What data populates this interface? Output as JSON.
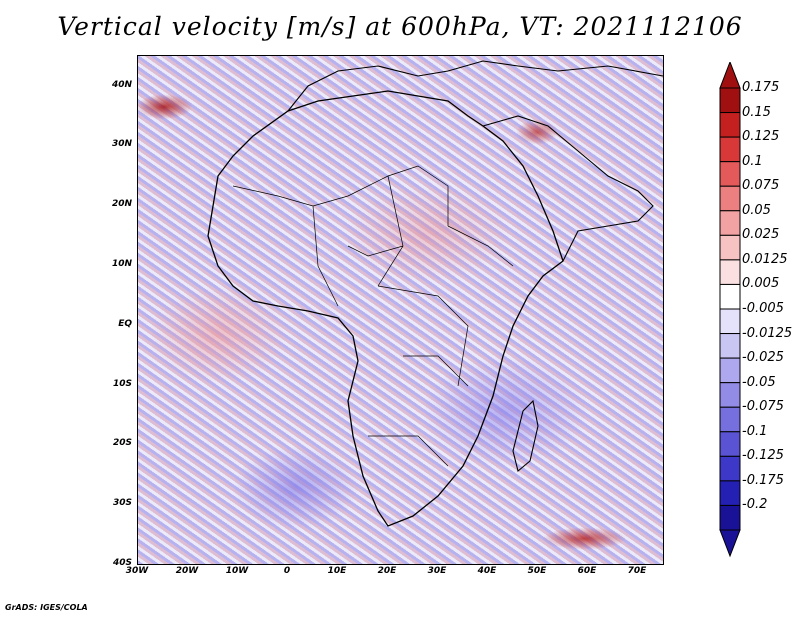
{
  "title": "Vertical velocity [m/s] at 600hPa, VT: 2021112106",
  "footer": "GrADS: IGES/COLA",
  "map": {
    "lat_labels": [
      "40N",
      "30N",
      "20N",
      "10N",
      "EQ",
      "10S",
      "20S",
      "30S",
      "40S"
    ],
    "lon_labels": [
      "30W",
      "20W",
      "10W",
      "0",
      "10E",
      "20E",
      "30E",
      "40E",
      "50E",
      "60E",
      "70E"
    ],
    "lat_range": [
      -40,
      45
    ],
    "lon_range": [
      -30,
      75
    ]
  },
  "colorbar": {
    "levels": [
      "0.175",
      "0.15",
      "0.125",
      "0.1",
      "0.075",
      "0.05",
      "0.025",
      "0.0125",
      "0.005",
      "-0.005",
      "-0.0125",
      "-0.025",
      "-0.05",
      "-0.075",
      "-0.1",
      "-0.125",
      "-0.175",
      "-0.2"
    ],
    "colors": [
      "#a01010",
      "#c42020",
      "#d83838",
      "#e45a5a",
      "#ec8080",
      "#f2a2a2",
      "#f6c2c2",
      "#fae0e0",
      "#ffffff",
      "#e4e2fa",
      "#cac6f4",
      "#aea8ee",
      "#928ce6",
      "#7670de",
      "#5a54d4",
      "#3e38c8",
      "#2420b4",
      "#1a1296"
    ]
  }
}
